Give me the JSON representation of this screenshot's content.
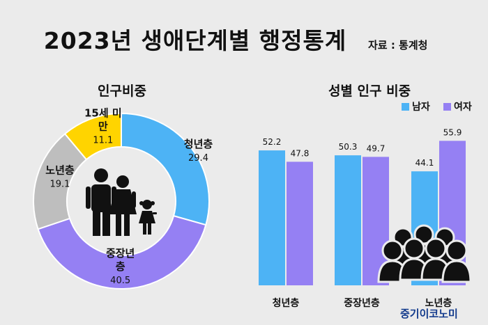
{
  "header": {
    "title": "2023년 생애단계별 행정통계",
    "source": "자료 : 통계청",
    "brand": "중기이코노미"
  },
  "colors": {
    "youth": "#4db3f5",
    "middle": "#9580f3",
    "senior": "#bebebe",
    "under15": "#ffd400",
    "male": "#4db3f5",
    "female": "#9580f3",
    "icon": "#111111"
  },
  "icons": [
    "family-icon",
    "crowd-icon"
  ],
  "chart_data": [
    {
      "type": "pie",
      "title": "인구비중",
      "slices": [
        {
          "name": "청년층",
          "value": 29.4,
          "lines": [
            "청년층"
          ]
        },
        {
          "name": "중장년층",
          "value": 40.5,
          "lines": [
            "중장년",
            "층"
          ]
        },
        {
          "name": "노년층",
          "value": 19.1,
          "lines": [
            "노년층"
          ]
        },
        {
          "name": "15세 미만",
          "value": 11.1,
          "lines": [
            "15세 미",
            "만"
          ]
        }
      ]
    },
    {
      "type": "bar",
      "title": "성별 인구 비중",
      "categories": [
        "청년층",
        "중장년층",
        "노년층"
      ],
      "series": [
        {
          "name": "남자",
          "values": [
            52.2,
            50.3,
            44.1
          ]
        },
        {
          "name": "여자",
          "values": [
            47.8,
            49.7,
            55.9
          ]
        }
      ],
      "legend": "top-right"
    }
  ]
}
